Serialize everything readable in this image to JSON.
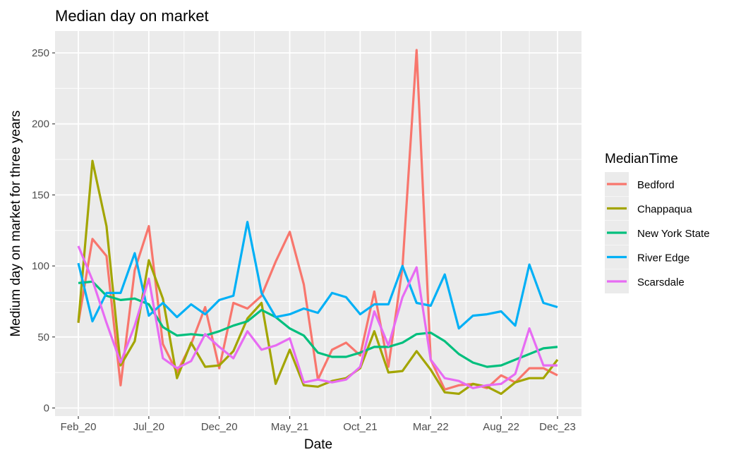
{
  "chart_data": {
    "type": "line",
    "title": "Median day on market",
    "xlabel": "Date",
    "ylabel": "Medium day on market for three years",
    "legend_title": "MedianTime",
    "legend_placement": "right",
    "grid": true,
    "ylim": [
      0,
      260
    ],
    "yticks": [
      0,
      50,
      100,
      150,
      200,
      250
    ],
    "x_tick_labels": [
      "Feb_20",
      "Jul_20",
      "Dec_20",
      "May_21",
      "Oct_21",
      "Mar_22",
      "Aug_22",
      "Dec_23"
    ],
    "x_tick_index": [
      0,
      5,
      10,
      15,
      20,
      25,
      30,
      34
    ],
    "n_points": 35,
    "series": [
      {
        "name": "Bedford",
        "color": "#F8766D",
        "values": [
          60,
          119,
          107,
          16,
          97,
          128,
          45,
          25,
          45,
          71,
          28,
          74,
          70,
          79,
          103,
          124,
          87,
          20,
          41,
          46,
          37,
          82,
          29,
          99,
          252,
          34,
          13,
          16,
          17,
          14,
          23,
          18,
          28,
          28,
          23
        ]
      },
      {
        "name": "Chappaqua",
        "color": "#A3A500",
        "values": [
          60,
          174,
          128,
          30,
          47,
          104,
          77,
          21,
          46,
          29,
          30,
          40,
          63,
          74,
          17,
          41,
          16,
          15,
          19,
          21,
          28,
          54,
          25,
          26,
          40,
          27,
          11,
          10,
          17,
          15,
          10,
          18,
          21,
          21,
          34
        ]
      },
      {
        "name": "New York State",
        "color": "#00BF7D",
        "values": [
          88,
          89,
          79,
          76,
          77,
          73,
          57,
          51,
          52,
          51,
          54,
          58,
          61,
          69,
          64,
          56,
          51,
          39,
          36,
          36,
          39,
          43,
          43,
          46,
          52,
          53,
          47,
          38,
          32,
          29,
          30,
          34,
          38,
          42,
          43
        ]
      },
      {
        "name": "River Edge",
        "color": "#00B0F6",
        "values": [
          102,
          61,
          81,
          81,
          109,
          65,
          74,
          64,
          73,
          66,
          76,
          79,
          131,
          81,
          64,
          66,
          70,
          67,
          81,
          78,
          66,
          73,
          73,
          100,
          74,
          72,
          94,
          56,
          65,
          66,
          68,
          58,
          101,
          74,
          71
        ]
      },
      {
        "name": "Scarsdale",
        "color": "#E76BF3",
        "values": [
          114,
          90,
          60,
          32,
          58,
          91,
          35,
          28,
          33,
          52,
          43,
          35,
          54,
          41,
          44,
          49,
          18,
          20,
          18,
          20,
          29,
          68,
          44,
          78,
          99,
          34,
          21,
          19,
          14,
          16,
          17,
          24,
          56,
          30,
          30
        ]
      }
    ]
  }
}
